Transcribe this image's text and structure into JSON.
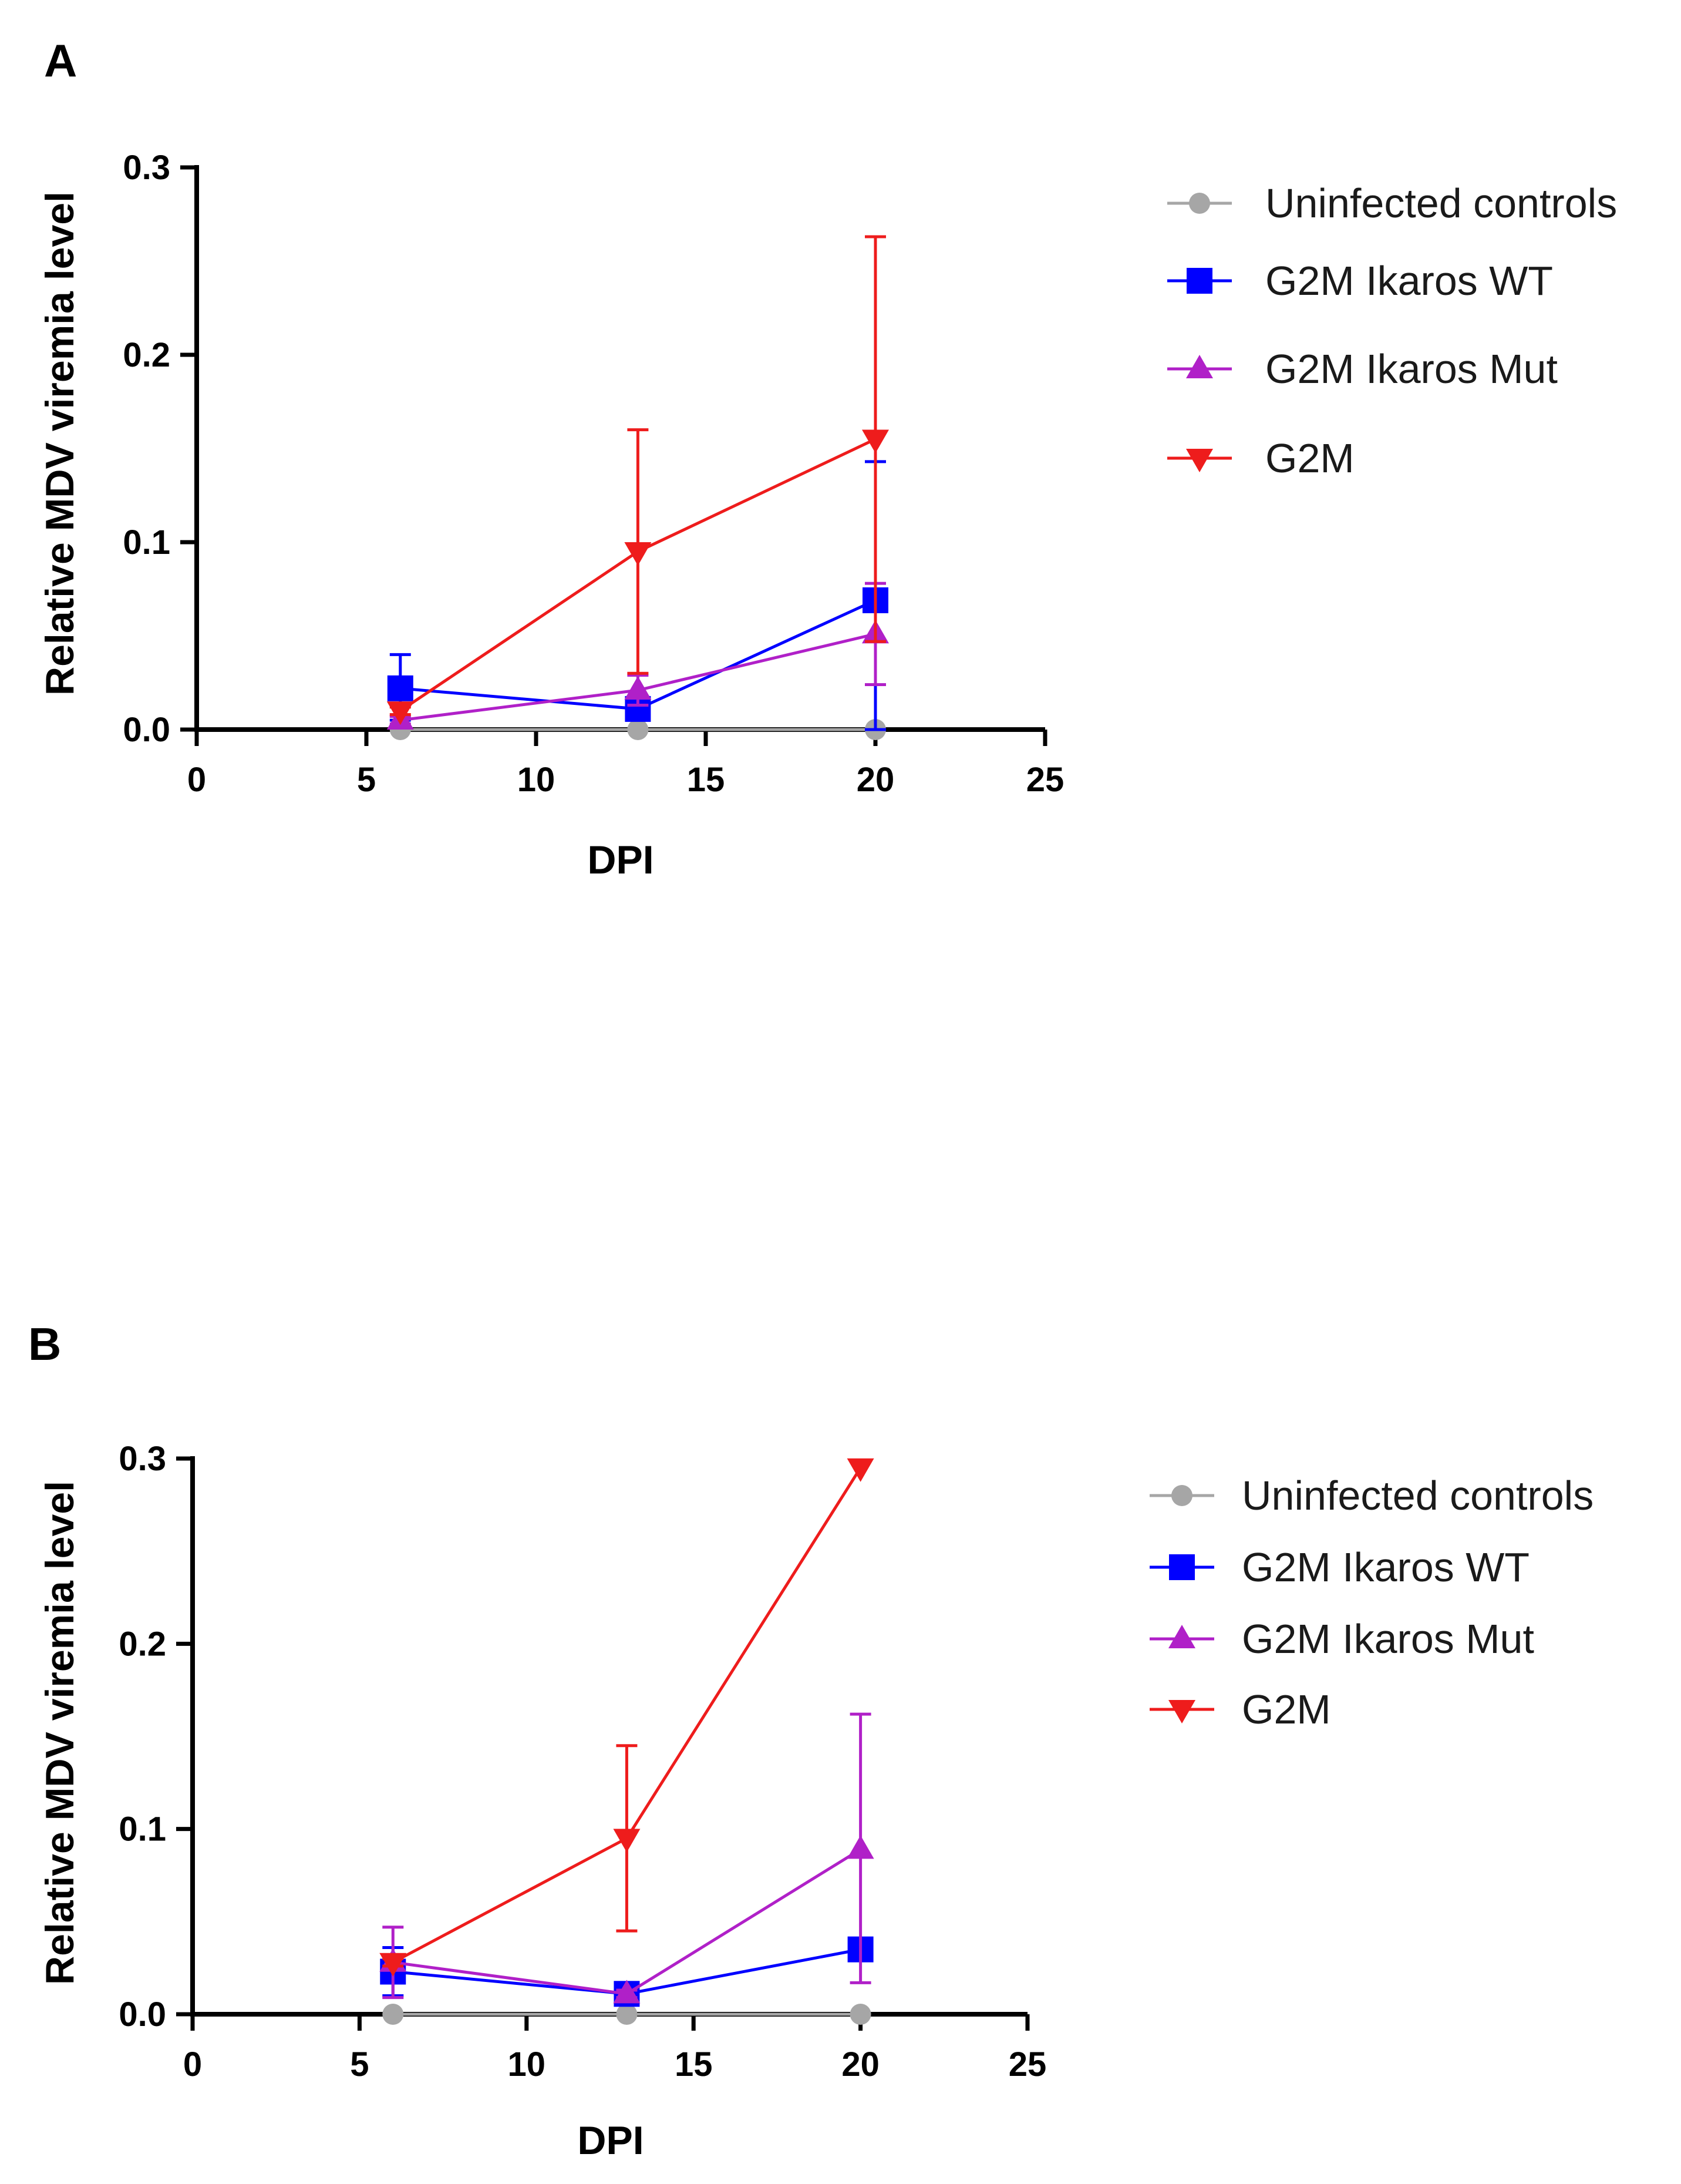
{
  "chart_data": [
    {
      "panel": "A",
      "type": "line",
      "xlabel": "DPI",
      "ylabel": "Relative MDV viremia level",
      "xlim": [
        0,
        25
      ],
      "ylim": [
        0,
        0.3
      ],
      "xticks": [
        "0",
        "5",
        "10",
        "15",
        "20",
        "25"
      ],
      "yticks": [
        "0.0",
        "0.1",
        "0.2",
        "0.3"
      ],
      "legend_position": "right",
      "series": [
        {
          "name": "Uninfected controls",
          "color": "#a6a6a6",
          "marker": "circle",
          "x": [
            6,
            13,
            20
          ],
          "values": [
            0.0,
            0.0,
            0.0
          ],
          "err_hi": [
            0.0,
            0.0,
            0.0
          ],
          "err_lo": [
            0.0,
            0.0,
            0.0
          ]
        },
        {
          "name": "G2M Ikaros WT",
          "color": "#0000ff",
          "marker": "square",
          "x": [
            6,
            13,
            20
          ],
          "values": [
            0.022,
            0.011,
            0.069
          ],
          "err_hi": [
            0.04,
            0.015,
            0.143
          ],
          "err_lo": [
            0.005,
            0.007,
            0.0
          ]
        },
        {
          "name": "G2M Ikaros Mut",
          "color": "#b020c8",
          "marker": "triangle-up",
          "x": [
            6,
            13,
            20
          ],
          "values": [
            0.005,
            0.021,
            0.051
          ],
          "err_hi": [
            0.007,
            0.029,
            0.078
          ],
          "err_lo": [
            0.003,
            0.013,
            0.024
          ]
        },
        {
          "name": "G2M",
          "color": "#ee1c1c",
          "marker": "triangle-down",
          "x": [
            6,
            13,
            20
          ],
          "values": [
            0.01,
            0.095,
            0.155
          ],
          "err_hi": [
            0.012,
            0.16,
            0.263
          ],
          "err_lo": [
            0.008,
            0.03,
            0.047
          ]
        }
      ]
    },
    {
      "panel": "B",
      "type": "line",
      "xlabel": "DPI",
      "ylabel": "Relative MDV viremia level",
      "xlim": [
        0,
        25
      ],
      "ylim": [
        0,
        0.3
      ],
      "xticks": [
        "0",
        "5",
        "10",
        "15",
        "20",
        "25"
      ],
      "yticks": [
        "0.0",
        "0.1",
        "0.2",
        "0.3"
      ],
      "legend_position": "right",
      "series": [
        {
          "name": "Uninfected controls",
          "color": "#a6a6a6",
          "marker": "circle",
          "x": [
            6,
            13,
            20
          ],
          "values": [
            0.0,
            0.0,
            0.0
          ],
          "err_hi": [
            0.0,
            0.0,
            0.0
          ],
          "err_lo": [
            0.0,
            0.0,
            0.0
          ]
        },
        {
          "name": "G2M Ikaros WT",
          "color": "#0000ff",
          "marker": "square",
          "x": [
            6,
            13,
            20
          ],
          "values": [
            0.023,
            0.011,
            0.035
          ],
          "err_hi": [
            0.036,
            0.014,
            0.035
          ],
          "err_lo": [
            0.01,
            0.008,
            0.035
          ]
        },
        {
          "name": "G2M Ikaros Mut",
          "color": "#b020c8",
          "marker": "triangle-up",
          "x": [
            6,
            13,
            20
          ],
          "values": [
            0.028,
            0.011,
            0.089
          ],
          "err_hi": [
            0.047,
            0.013,
            0.162
          ],
          "err_lo": [
            0.009,
            0.009,
            0.017
          ]
        },
        {
          "name": "G2M",
          "color": "#ee1c1c",
          "marker": "triangle-down",
          "x": [
            6,
            13,
            20
          ],
          "values": [
            0.028,
            0.095,
            0.295
          ],
          "err_hi": [
            0.03,
            0.145,
            0.295
          ],
          "err_lo": [
            0.026,
            0.045,
            0.295
          ]
        }
      ]
    }
  ]
}
